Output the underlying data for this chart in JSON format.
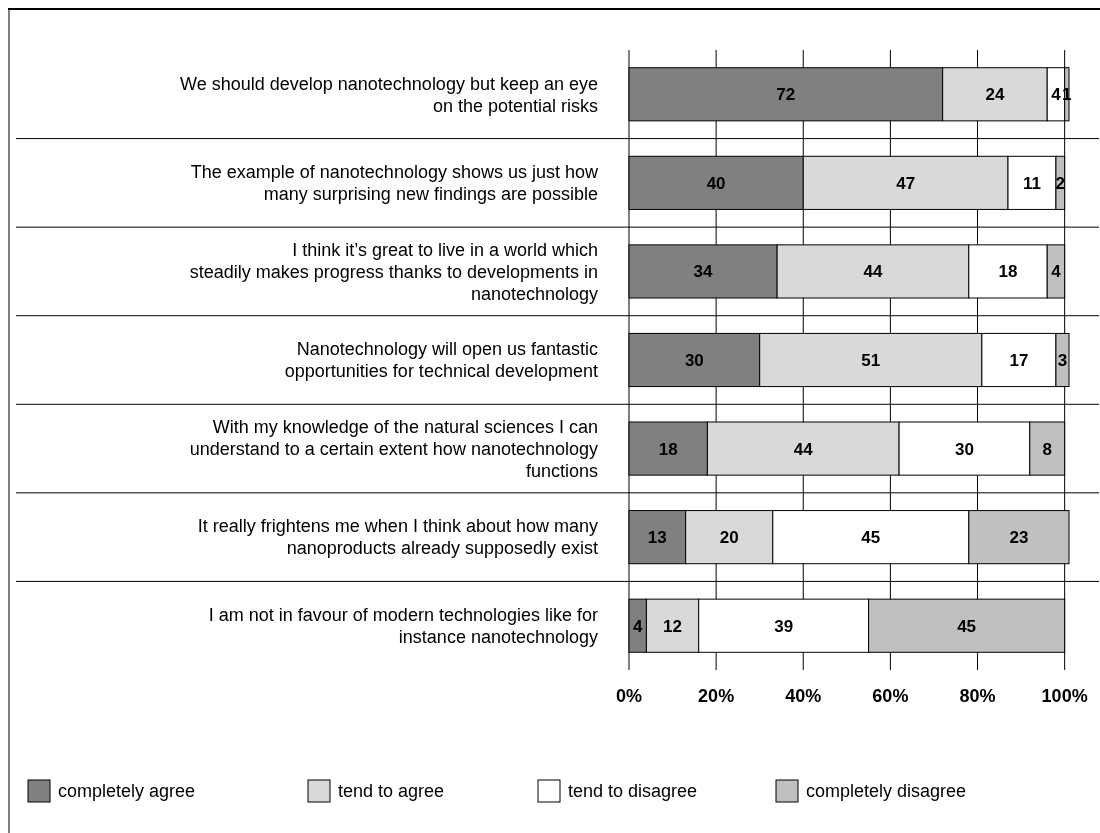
{
  "chart_data": {
    "type": "bar",
    "orientation": "horizontal",
    "stacked": true,
    "categories": [
      "We should develop nanotechnology but keep an eye on the potential risks",
      "The example of nanotechnology shows us just how many surprising new findings are possible",
      "I think it’s great to live in a world which steadily makes progress thanks to developments in nanotechnology",
      "Nanotechnology will open us fantastic opportunities for technical development",
      "With my knowledge of the natural sciences I can understand to a certain extent how nanotechnology functions",
      "It really frightens me when I think about how many nanoproducts already supposedly exist",
      "I am not in favour of modern technologies like for instance nanotechnology"
    ],
    "series": [
      {
        "name": "completely agree",
        "color": "#808080",
        "values": [
          72,
          40,
          34,
          30,
          18,
          13,
          4
        ]
      },
      {
        "name": "tend to agree",
        "color": "#d9d9d9",
        "values": [
          24,
          47,
          44,
          51,
          44,
          20,
          12
        ]
      },
      {
        "name": "tend to disagree",
        "color": "#ffffff",
        "values": [
          4,
          11,
          18,
          17,
          30,
          45,
          39
        ]
      },
      {
        "name": "completely disagree",
        "color": "#c0c0c0",
        "values": [
          1,
          2,
          4,
          3,
          8,
          23,
          45
        ]
      }
    ],
    "xlim": [
      0,
      101
    ],
    "xticks": [
      {
        "value": 0,
        "label": "0%"
      },
      {
        "value": 20,
        "label": "20%"
      },
      {
        "value": 40,
        "label": "40%"
      },
      {
        "value": 60,
        "label": "60%"
      },
      {
        "value": 80,
        "label": "80%"
      },
      {
        "value": 100,
        "label": "100%"
      }
    ],
    "grid": "x",
    "legend": "bottom",
    "data_labels": true
  }
}
